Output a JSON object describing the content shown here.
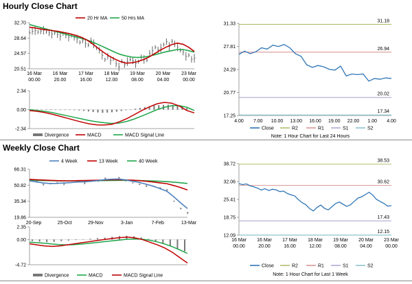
{
  "titles": {
    "hourly": "Hourly Close Chart",
    "weekly": "Weekly Close Chart"
  },
  "colors": {
    "price": "#1a1a1a",
    "bar": "#555555",
    "ma_short": "#c00000",
    "ma_long": "#1fa64a",
    "ma_4w": "#4f81bd",
    "close": "#2e75b6",
    "r2": "#b5bd6b",
    "r1": "#d99694",
    "s1": "#b4a7d6",
    "s2": "#8cc5d1",
    "div_bar": "#777777",
    "axis": "#888888",
    "grid": "#cccccc"
  },
  "chart_data": [
    {
      "id": "hourly_price",
      "type": "line",
      "legend": [
        "20 Hr MA",
        "50 Hrs MA"
      ],
      "yticks": [
        "32.70",
        "28.64",
        "24.57",
        "20.51"
      ],
      "ylim": [
        20.51,
        32.7
      ],
      "xticks": [
        [
          "16 Mar",
          "00.00"
        ],
        [
          "16 Mar",
          "20.00"
        ],
        [
          "17 Mar",
          "16.00"
        ],
        [
          "18 Mar",
          "12.00"
        ],
        [
          "19 Mar",
          "08.00"
        ],
        [
          "20 Mar",
          "04.00"
        ],
        [
          "23 Mar",
          "00.00"
        ]
      ],
      "price": [
        30.1,
        30.4,
        30.6,
        30.2,
        30.5,
        30.7,
        30.3,
        30.0,
        29.7,
        30.0,
        29.5,
        29.1,
        29.8,
        29.4,
        28.9,
        29.3,
        28.8,
        28.4,
        27.5,
        28.1,
        27.2,
        26.8,
        27.9,
        27.1,
        26.0,
        25.4,
        24.1,
        22.9,
        23.8,
        22.7,
        23.1,
        21.8,
        21.0,
        22.5,
        21.6,
        22.4,
        23.0,
        22.6,
        21.9,
        22.4,
        23.5,
        23.0,
        22.8,
        24.6,
        25.3,
        26.2,
        25.5,
        26.0,
        26.9,
        27.7,
        26.4,
        27.8,
        27.1,
        26.3,
        25.4,
        24.9,
        23.8,
        24.1,
        23.0,
        23.3
      ],
      "series": [
        {
          "name": "20 Hr MA",
          "values": [
            31.5,
            31.3,
            31.0,
            30.8,
            30.6,
            30.4,
            30.1,
            29.8,
            29.4,
            28.9,
            28.2,
            27.2,
            26.0,
            24.9,
            23.9,
            23.1,
            22.4,
            22.0,
            22.1,
            22.4,
            22.9,
            23.6,
            24.5,
            25.4,
            26.2,
            26.9,
            27.3,
            27.0,
            26.2,
            25.1
          ]
        },
        {
          "name": "50 Hrs MA",
          "values": [
            32.2,
            31.8,
            31.4,
            31.0,
            30.6,
            30.2,
            29.8,
            29.4,
            29.0,
            28.6,
            28.2,
            27.6,
            27.0,
            26.3,
            25.6,
            24.9,
            24.3,
            23.9,
            23.6,
            23.5,
            23.6,
            23.8,
            24.2,
            24.6,
            25.0,
            25.3,
            25.6,
            25.6,
            25.3,
            24.9
          ]
        }
      ]
    },
    {
      "id": "hourly_macd",
      "type": "line",
      "legend": [
        "Divergence",
        "MACD",
        "MACD Signal Line"
      ],
      "yticks": [
        "2.34",
        "0.00",
        "-2.34"
      ],
      "ylim": [
        -2.34,
        2.34
      ],
      "divergence": [
        0.05,
        0.06,
        0.04,
        0.03,
        0.02,
        0.01,
        0.0,
        -0.02,
        -0.04,
        -0.07,
        -0.1,
        -0.15,
        -0.22,
        -0.28,
        -0.34,
        -0.38,
        -0.36,
        -0.32,
        -0.25,
        -0.16,
        -0.08,
        0.02,
        0.12,
        0.22,
        0.32,
        0.42,
        0.5,
        0.56,
        0.6,
        0.62,
        0.58,
        0.48,
        0.36,
        0.2,
        0.04
      ],
      "series": [
        {
          "name": "MACD",
          "values": [
            -0.1,
            -0.2,
            -0.35,
            -0.55,
            -0.8,
            -1.05,
            -1.3,
            -1.55,
            -1.75,
            -1.88,
            -1.9,
            -1.8,
            -1.5,
            -1.1,
            -0.6,
            -0.1,
            0.35,
            0.72,
            0.9,
            0.8,
            0.45,
            -0.1,
            -0.4
          ]
        },
        {
          "name": "MACD Signal Line",
          "values": [
            0.0,
            -0.1,
            -0.2,
            -0.35,
            -0.55,
            -0.75,
            -0.95,
            -1.15,
            -1.35,
            -1.5,
            -1.62,
            -1.7,
            -1.65,
            -1.45,
            -1.15,
            -0.78,
            -0.4,
            0.0,
            0.3,
            0.5,
            0.5,
            0.3,
            -0.1
          ]
        }
      ]
    },
    {
      "id": "hourly_close",
      "type": "line",
      "yticks": [
        "31.33",
        "27.81",
        "24.29",
        "20.77",
        "17.25"
      ],
      "ylim": [
        17.25,
        31.33
      ],
      "xticks": [
        "4.00",
        "7.00",
        "10.00",
        "13.00",
        "16.00",
        "19.00",
        "22.00",
        "1.00",
        "4.00"
      ],
      "levels": [
        {
          "name": "R2",
          "value": 31.18,
          "label": "31.18"
        },
        {
          "name": "R1",
          "value": 26.94,
          "label": "26.94"
        },
        {
          "name": "S1",
          "value": 20.02,
          "label": "20.02"
        },
        {
          "name": "S2",
          "value": 17.34,
          "label": "17.34"
        }
      ],
      "series": [
        {
          "name": "Close",
          "values": [
            26.6,
            27.1,
            26.7,
            27.0,
            27.6,
            27.4,
            28.0,
            27.8,
            28.1,
            27.6,
            26.7,
            26.3,
            25.0,
            24.6,
            24.9,
            24.7,
            24.3,
            24.2,
            24.8,
            23.3,
            23.6,
            23.5,
            23.6,
            22.5,
            22.9,
            22.8,
            23.0,
            22.9
          ]
        }
      ],
      "legend": [
        "Close",
        "R2",
        "R1",
        "S1",
        "S2"
      ],
      "note": "Note: 1 Hour Chart for Last 24 Hours"
    },
    {
      "id": "weekly_price",
      "type": "line",
      "legend": [
        "4 Week",
        "13 Week",
        "40 Week"
      ],
      "yticks": [
        "66.31",
        "50.82",
        "35.34",
        "19.86"
      ],
      "ylim": [
        19.86,
        66.31
      ],
      "xticks": [
        "20-Sep",
        "25-Oct",
        "29-Nov",
        "3-Jan",
        "7-Feb",
        "13-Mar"
      ],
      "price": [
        55.5,
        54.8,
        51.5,
        52.2,
        53.1,
        51.9,
        53.4,
        54.6,
        52.8,
        55.3,
        54.9,
        57.2,
        56.1,
        58.0,
        55.4,
        53.1,
        51.7,
        50.2,
        49.8,
        48.1,
        46.2,
        35.4,
        28.3,
        24.1
      ],
      "series": [
        {
          "name": "4 Week",
          "values": [
            55.0,
            54.0,
            53.0,
            52.5,
            52.6,
            53.0,
            53.3,
            53.9,
            54.1,
            54.6,
            55.3,
            56.2,
            56.6,
            56.8,
            55.9,
            54.6,
            53.5,
            51.8,
            49.9,
            47.5,
            45.0,
            39.8,
            33.8,
            28.3
          ]
        },
        {
          "name": "13 Week",
          "values": [
            56.5,
            56.1,
            55.8,
            55.5,
            55.2,
            55.1,
            55.0,
            55.2,
            55.3,
            55.5,
            55.6,
            55.8,
            56.0,
            56.1,
            55.9,
            55.6,
            55.2,
            54.6,
            53.9,
            53.1,
            52.3,
            50.5,
            48.6,
            46.3
          ]
        },
        {
          "name": "40 Week",
          "values": [
            55.6,
            55.5,
            55.3,
            55.2,
            55.1,
            55.0,
            55.0,
            55.0,
            55.0,
            55.1,
            55.2,
            55.3,
            55.4,
            55.5,
            55.5,
            55.4,
            55.3,
            55.1,
            54.9,
            54.6,
            54.3,
            53.8,
            53.2,
            52.5
          ]
        }
      ]
    },
    {
      "id": "weekly_macd",
      "type": "line",
      "legend": [
        "Divergence",
        "MACD",
        "MACD Signal Line"
      ],
      "yticks": [
        "2.35",
        "0.00",
        "-4.72"
      ],
      "ylim": [
        -4.72,
        2.35
      ],
      "divergence": [
        -0.3,
        -0.4,
        -0.5,
        -0.45,
        -0.3,
        -0.2,
        -0.1,
        0.05,
        0.15,
        0.25,
        0.35,
        0.5,
        0.65,
        0.7,
        0.6,
        0.4,
        0.1,
        -0.3,
        -0.7,
        -1.2,
        -1.8,
        -2.2
      ],
      "series": [
        {
          "name": "MACD",
          "values": [
            -0.8,
            -1.0,
            -1.2,
            -1.3,
            -1.2,
            -1.0,
            -0.8,
            -0.6,
            -0.4,
            -0.2,
            0.0,
            0.2,
            0.35,
            0.45,
            0.3,
            0.0,
            -0.5,
            -1.0,
            -1.6,
            -2.4,
            -3.4,
            -4.4
          ]
        },
        {
          "name": "MACD Signal Line",
          "values": [
            -0.5,
            -0.6,
            -0.7,
            -0.85,
            -0.95,
            -1.0,
            -0.95,
            -0.85,
            -0.7,
            -0.55,
            -0.4,
            -0.25,
            -0.1,
            0.05,
            0.1,
            0.05,
            -0.15,
            -0.45,
            -0.85,
            -1.35,
            -1.95,
            -2.6
          ]
        }
      ]
    },
    {
      "id": "weekly_close",
      "type": "line",
      "yticks": [
        "38.72",
        "32.06",
        "25.41",
        "18.75",
        "12.09"
      ],
      "ylim": [
        12.09,
        38.72
      ],
      "xticks": [
        [
          "16 Mar",
          "00.00"
        ],
        [
          "16 Mar",
          "20.00"
        ],
        [
          "17 Mar",
          "16.00"
        ],
        [
          "18 Mar",
          "12.00"
        ],
        [
          "19 Mar",
          "08.00"
        ],
        [
          "20 Mar",
          "04.00"
        ],
        [
          "23 Mar",
          "00.00"
        ]
      ],
      "levels": [
        {
          "name": "R2",
          "value": 38.53,
          "label": "38.53"
        },
        {
          "name": "R1",
          "value": 30.62,
          "label": "30.62"
        },
        {
          "name": "S1",
          "value": 17.43,
          "label": "17.43"
        },
        {
          "name": "S2",
          "value": 12.15,
          "label": "12.15"
        }
      ],
      "series": [
        {
          "name": "Close",
          "values": [
            31.3,
            30.9,
            31.2,
            30.5,
            30.1,
            29.6,
            28.9,
            29.4,
            28.7,
            29.2,
            29.0,
            28.3,
            28.5,
            27.6,
            27.1,
            26.7,
            25.3,
            24.2,
            23.4,
            22.0,
            21.1,
            22.4,
            23.3,
            22.1,
            21.5,
            22.7,
            23.9,
            24.4,
            23.6,
            22.8,
            23.4,
            24.7,
            25.9,
            26.4,
            27.2,
            28.1,
            27.0,
            25.4,
            24.6,
            23.9,
            22.9,
            23.1
          ]
        }
      ],
      "legend": [
        "Close",
        "R2",
        "R1",
        "S1",
        "S2"
      ],
      "note": "Note: 1 Hour Chart for Last 1 Week"
    }
  ]
}
